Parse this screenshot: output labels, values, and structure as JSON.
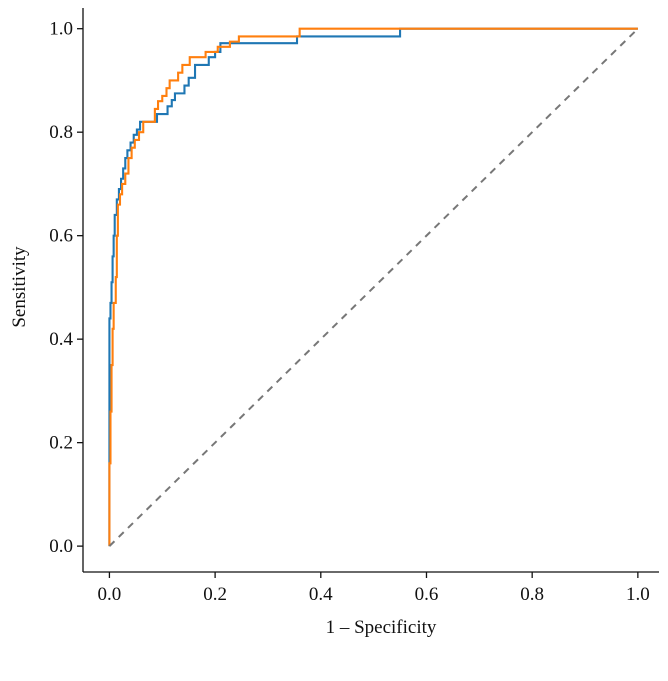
{
  "chart_data": {
    "type": "line",
    "title": "",
    "xlabel": "1 – Specificity",
    "ylabel": "Sensitivity",
    "xlim": [
      -0.05,
      1.04
    ],
    "ylim": [
      -0.05,
      1.04
    ],
    "xticks": [
      0.0,
      0.2,
      0.4,
      0.6,
      0.8,
      1.0
    ],
    "yticks": [
      0.0,
      0.2,
      0.4,
      0.6,
      0.8,
      1.0
    ],
    "xtick_labels": [
      "0.0",
      "0.2",
      "0.4",
      "0.6",
      "0.8",
      "1.0"
    ],
    "ytick_labels": [
      "0.0",
      "0.2",
      "0.4",
      "0.6",
      "0.8",
      "1.0"
    ],
    "grid": false,
    "legend": "none",
    "series": [
      {
        "color": "#1f77b4",
        "step": true,
        "x": [
          0.0,
          0.0,
          0.002,
          0.002,
          0.004,
          0.004,
          0.006,
          0.006,
          0.008,
          0.008,
          0.01,
          0.01,
          0.014,
          0.014,
          0.018,
          0.018,
          0.022,
          0.022,
          0.026,
          0.026,
          0.03,
          0.03,
          0.034,
          0.034,
          0.04,
          0.04,
          0.046,
          0.046,
          0.052,
          0.052,
          0.058,
          0.058,
          0.09,
          0.09,
          0.11,
          0.11,
          0.118,
          0.118,
          0.124,
          0.124,
          0.142,
          0.142,
          0.15,
          0.15,
          0.162,
          0.162,
          0.188,
          0.188,
          0.2,
          0.2,
          0.21,
          0.21,
          0.355,
          0.355,
          0.55,
          0.55,
          1.0
        ],
        "y": [
          0.0,
          0.44,
          0.44,
          0.47,
          0.47,
          0.51,
          0.51,
          0.56,
          0.56,
          0.6,
          0.6,
          0.64,
          0.64,
          0.67,
          0.67,
          0.69,
          0.69,
          0.71,
          0.71,
          0.73,
          0.73,
          0.75,
          0.75,
          0.765,
          0.765,
          0.78,
          0.78,
          0.795,
          0.795,
          0.805,
          0.805,
          0.82,
          0.82,
          0.835,
          0.835,
          0.85,
          0.85,
          0.862,
          0.862,
          0.875,
          0.875,
          0.89,
          0.89,
          0.905,
          0.905,
          0.93,
          0.93,
          0.945,
          0.945,
          0.955,
          0.955,
          0.972,
          0.972,
          0.985,
          0.985,
          1.0,
          1.0
        ]
      },
      {
        "color": "#ff7f0e",
        "step": true,
        "x": [
          0.0,
          0.0,
          0.002,
          0.002,
          0.004,
          0.004,
          0.006,
          0.006,
          0.008,
          0.008,
          0.012,
          0.012,
          0.014,
          0.014,
          0.016,
          0.016,
          0.02,
          0.02,
          0.024,
          0.024,
          0.03,
          0.03,
          0.036,
          0.036,
          0.042,
          0.042,
          0.048,
          0.048,
          0.056,
          0.056,
          0.064,
          0.064,
          0.086,
          0.086,
          0.092,
          0.092,
          0.1,
          0.1,
          0.108,
          0.108,
          0.114,
          0.114,
          0.13,
          0.13,
          0.138,
          0.138,
          0.152,
          0.152,
          0.182,
          0.182,
          0.205,
          0.205,
          0.228,
          0.228,
          0.245,
          0.245,
          0.36,
          0.36,
          1.0
        ],
        "y": [
          0.0,
          0.16,
          0.16,
          0.26,
          0.26,
          0.35,
          0.35,
          0.42,
          0.42,
          0.47,
          0.47,
          0.52,
          0.52,
          0.6,
          0.6,
          0.66,
          0.66,
          0.68,
          0.68,
          0.7,
          0.7,
          0.72,
          0.72,
          0.75,
          0.75,
          0.77,
          0.77,
          0.785,
          0.785,
          0.8,
          0.8,
          0.82,
          0.82,
          0.845,
          0.845,
          0.86,
          0.86,
          0.87,
          0.87,
          0.885,
          0.885,
          0.9,
          0.9,
          0.915,
          0.915,
          0.93,
          0.93,
          0.945,
          0.945,
          0.955,
          0.955,
          0.965,
          0.965,
          0.975,
          0.975,
          0.985,
          0.985,
          1.0,
          1.0
        ]
      },
      {
        "color": "#777777",
        "dashed": true,
        "x": [
          0.0,
          1.0
        ],
        "y": [
          0.0,
          1.0
        ]
      }
    ]
  }
}
